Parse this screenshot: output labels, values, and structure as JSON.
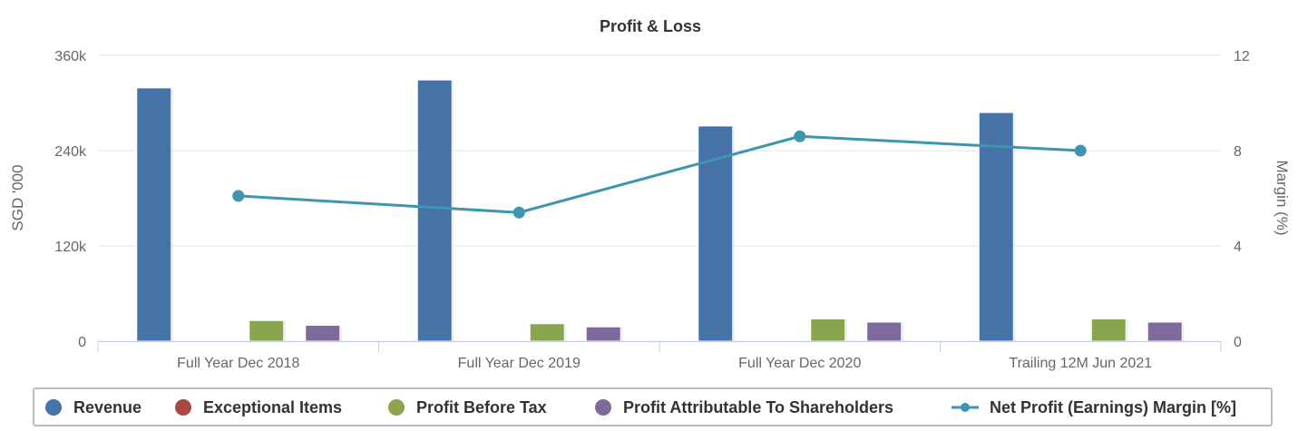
{
  "chart_data": {
    "type": "bar",
    "title": "Profit & Loss",
    "categories": [
      "Full Year Dec 2018",
      "Full Year Dec 2019",
      "Full Year Dec 2020",
      "Trailing 12M Jun 2021"
    ],
    "ylabel": "SGD '000",
    "ylabel_right": "Margin (%)",
    "ylim": [
      0,
      360000
    ],
    "yticks": [
      0,
      120000,
      240000,
      360000
    ],
    "ytick_labels": [
      "0",
      "120k",
      "240k",
      "360k"
    ],
    "ylim_right": [
      0,
      12
    ],
    "yticks_right": [
      0,
      4,
      8,
      12
    ],
    "ytick_labels_right": [
      "0",
      "4",
      "8",
      "12"
    ],
    "grid": true,
    "legend_position": "bottom",
    "series": [
      {
        "name": "Revenue",
        "type": "bar",
        "color": "#4572a7",
        "values": [
          319000,
          329000,
          271000,
          288000
        ]
      },
      {
        "name": "Exceptional Items",
        "type": "bar",
        "color": "#aa4643",
        "values": [
          0,
          0,
          0,
          0
        ]
      },
      {
        "name": "Profit Before Tax",
        "type": "bar",
        "color": "#89a54e",
        "values": [
          26000,
          22000,
          28000,
          28000
        ]
      },
      {
        "name": "Profit Attributable To Shareholders",
        "type": "bar",
        "color": "#80699b",
        "values": [
          20000,
          18000,
          24000,
          24000
        ]
      },
      {
        "name": "Net Profit (Earnings) Margin [%]",
        "type": "line",
        "axis": "right",
        "color": "#3d96ae",
        "values": [
          6.1,
          5.4,
          8.6,
          8.0
        ]
      }
    ]
  }
}
